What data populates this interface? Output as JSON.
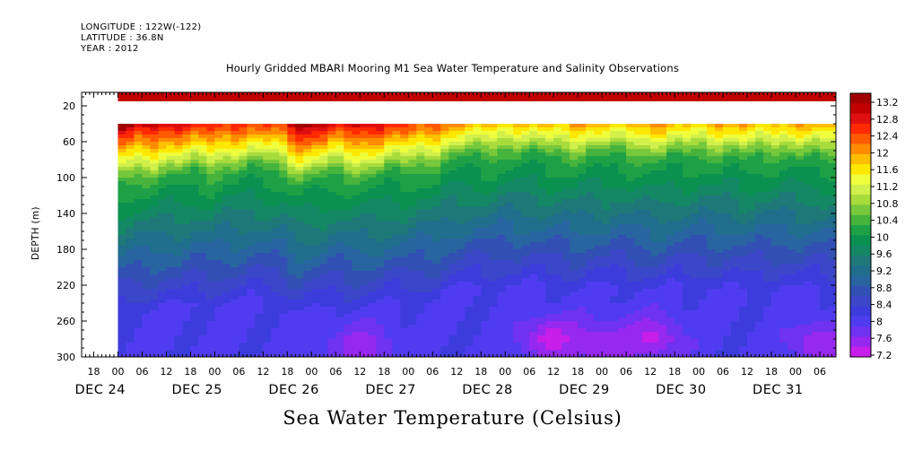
{
  "header": {
    "longitude": "LONGITUDE : 122W(-122)",
    "latitude": "LATITUDE : 36.8N",
    "year": "YEAR : 2012"
  },
  "chart_data": {
    "type": "heatmap",
    "title": "Hourly Gridded MBARI Mooring M1 Sea Water Temperature and Salinity Observations",
    "xlabel": "",
    "ylabel": "DEPTH (m)",
    "variable_label": "Sea Water Temperature (Celsius)",
    "y_range": [
      300,
      5
    ],
    "y_ticks": [
      20,
      60,
      100,
      140,
      180,
      220,
      260,
      300
    ],
    "x_range_hours": [
      -9,
      178
    ],
    "x_hour_ticks": [
      {
        "h": -6,
        "label": "18"
      },
      {
        "h": 0,
        "label": "00"
      },
      {
        "h": 6,
        "label": "06"
      },
      {
        "h": 12,
        "label": "12"
      },
      {
        "h": 18,
        "label": "18"
      },
      {
        "h": 24,
        "label": "00"
      },
      {
        "h": 30,
        "label": "06"
      },
      {
        "h": 36,
        "label": "12"
      },
      {
        "h": 42,
        "label": "18"
      },
      {
        "h": 48,
        "label": "00"
      },
      {
        "h": 54,
        "label": "06"
      },
      {
        "h": 60,
        "label": "12"
      },
      {
        "h": 66,
        "label": "18"
      },
      {
        "h": 72,
        "label": "00"
      },
      {
        "h": 78,
        "label": "06"
      },
      {
        "h": 84,
        "label": "12"
      },
      {
        "h": 90,
        "label": "18"
      },
      {
        "h": 96,
        "label": "00"
      },
      {
        "h": 102,
        "label": "06"
      },
      {
        "h": 108,
        "label": "12"
      },
      {
        "h": 114,
        "label": "18"
      },
      {
        "h": 120,
        "label": "00"
      },
      {
        "h": 126,
        "label": "06"
      },
      {
        "h": 132,
        "label": "12"
      },
      {
        "h": 138,
        "label": "18"
      },
      {
        "h": 144,
        "label": "00"
      },
      {
        "h": 150,
        "label": "06"
      },
      {
        "h": 156,
        "label": "12"
      },
      {
        "h": 162,
        "label": "18"
      },
      {
        "h": 168,
        "label": "00"
      },
      {
        "h": 174,
        "label": "06"
      },
      {
        "h": 180,
        "label": "12"
      }
    ],
    "x_date_labels": [
      {
        "h": -12,
        "label": "DEC 24"
      },
      {
        "h": 12,
        "label": "DEC 25"
      },
      {
        "h": 36,
        "label": "DEC 26"
      },
      {
        "h": 60,
        "label": "DEC 27"
      },
      {
        "h": 84,
        "label": "DEC 28"
      },
      {
        "h": 108,
        "label": "DEC 29"
      },
      {
        "h": 132,
        "label": "DEC 30"
      },
      {
        "h": 156,
        "label": "DEC 31"
      }
    ],
    "data_start_hour": 0,
    "surface_band_depth_m": [
      5,
      15
    ],
    "gap_depth_m": [
      15,
      40
    ],
    "colorbar": {
      "labels": [
        13.2,
        12.8,
        12.4,
        12,
        11.6,
        11.2,
        10.8,
        10.4,
        10,
        9.6,
        9.2,
        8.8,
        8.4,
        8,
        7.6,
        7.2
      ],
      "colors": [
        "#a00000",
        "#c30000",
        "#e01010",
        "#ff2a00",
        "#ff5a00",
        "#ff8c00",
        "#ffbe00",
        "#ffe800",
        "#f0ff3c",
        "#d2f04b",
        "#a8dc3c",
        "#78c83c",
        "#46b43c",
        "#1ea046",
        "#0a9150",
        "#148764",
        "#1e7878",
        "#1e6e8c",
        "#2864a0",
        "#3250b4",
        "#3c46c8",
        "#3c3cdc",
        "#503cf0",
        "#6e32f0",
        "#9628f0",
        "#c81eea"
      ]
    },
    "surface_temp_c": 13.1,
    "thermocline_depth_m": [
      [
        0,
        90
      ],
      [
        6,
        88
      ],
      [
        12,
        84
      ],
      [
        18,
        80
      ],
      [
        24,
        82
      ],
      [
        30,
        76
      ],
      [
        36,
        74
      ],
      [
        42,
        82
      ],
      [
        46,
        94
      ],
      [
        50,
        84
      ],
      [
        56,
        82
      ],
      [
        60,
        88
      ],
      [
        66,
        80
      ],
      [
        72,
        78
      ],
      [
        78,
        74
      ],
      [
        82,
        68
      ],
      [
        86,
        60
      ],
      [
        90,
        64
      ],
      [
        96,
        58
      ],
      [
        102,
        58
      ],
      [
        108,
        62
      ],
      [
        114,
        64
      ],
      [
        120,
        60
      ],
      [
        126,
        60
      ],
      [
        132,
        66
      ],
      [
        138,
        62
      ],
      [
        144,
        60
      ],
      [
        150,
        62
      ],
      [
        156,
        64
      ],
      [
        162,
        60
      ],
      [
        168,
        62
      ],
      [
        174,
        64
      ],
      [
        178,
        62
      ]
    ],
    "deep_cold_patches": [
      {
        "h": 60,
        "depth_m": 290,
        "temp_c": 7.5
      },
      {
        "h": 108,
        "depth_m": 280,
        "temp_c": 7.3
      },
      {
        "h": 120,
        "depth_m": 288,
        "temp_c": 7.5
      },
      {
        "h": 132,
        "depth_m": 278,
        "temp_c": 7.4
      },
      {
        "h": 174,
        "depth_m": 285,
        "temp_c": 7.5
      }
    ]
  }
}
